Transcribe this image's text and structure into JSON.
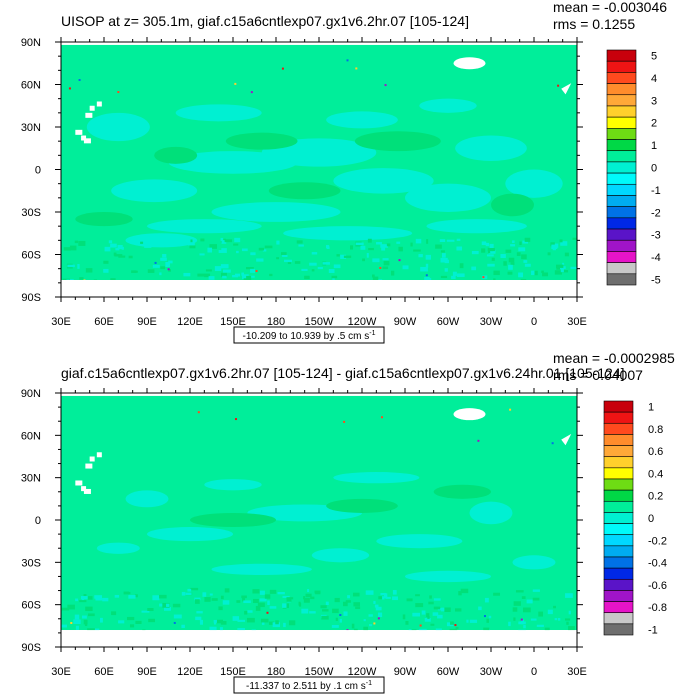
{
  "colors": {
    "ocean_small": "#00ee9a",
    "ocean_pos": "#00e07a",
    "ocean_neg": "#00f0d2",
    "land_mask": "#ffffff"
  },
  "chart_data": [
    {
      "type": "heatmap",
      "title": "UISOP at z= 305.1m, giaf.c15a6cntlexp07.gx1v6.2hr.07 [105-124]",
      "stats": {
        "mean_label": "mean = -0.003046",
        "rms_label": "rms = 0.1255"
      },
      "x_ticks": [
        "30E",
        "60E",
        "90E",
        "120E",
        "150E",
        "180",
        "150W",
        "120W",
        "90W",
        "60W",
        "30W",
        "0",
        "30E"
      ],
      "y_ticks": [
        "90N",
        "60N",
        "30N",
        "0",
        "30S",
        "60S",
        "90S"
      ],
      "xlim": [
        30,
        390
      ],
      "ylim": [
        -90,
        90
      ],
      "range_note": "-10.209 to 10.939 by .5 cm s",
      "range_unit_exp": "-1",
      "colorbar": {
        "labels": [
          "5",
          "4",
          "3",
          "2",
          "1",
          "0",
          "-1",
          "-2",
          "-3",
          "-4",
          "-5"
        ],
        "colors": [
          "#c8000c",
          "#ee1414",
          "#ff4a1e",
          "#ff8c2c",
          "#ffa838",
          "#ffd02c",
          "#ffff00",
          "#6edc14",
          "#00d846",
          "#00ee9a",
          "#00f0d2",
          "#00fafa",
          "#00d8ff",
          "#00acf0",
          "#0072e6",
          "#0028e6",
          "#5a14c8",
          "#a014c8",
          "#e614c8",
          "#c8c8c8",
          "#6e6e6e"
        ]
      }
    },
    {
      "type": "heatmap",
      "title": "giaf.c15a6cntlexp07.gx1v6.2hr.07 [105-124] - giaf.c15a6cntlexp07.gx1v6.24hr.01 [105-124]",
      "stats": {
        "mean_label": "mean = -0.0002985",
        "rms_label": "rms = 0.04007"
      },
      "x_ticks": [
        "30E",
        "60E",
        "90E",
        "120E",
        "150E",
        "180",
        "150W",
        "120W",
        "90W",
        "60W",
        "30W",
        "0",
        "30E"
      ],
      "y_ticks": [
        "90N",
        "60N",
        "30N",
        "0",
        "30S",
        "60S",
        "90S"
      ],
      "xlim": [
        30,
        390
      ],
      "ylim": [
        -90,
        90
      ],
      "range_note": "-11.337 to 2.511 by .1 cm s",
      "range_unit_exp": "-1",
      "colorbar": {
        "labels": [
          "1",
          "0.8",
          "0.6",
          "0.4",
          "0.2",
          "0",
          "-0.2",
          "-0.4",
          "-0.6",
          "-0.8",
          "-1"
        ],
        "colors": [
          "#c8000c",
          "#ee1414",
          "#ff4a1e",
          "#ff8c2c",
          "#ffa838",
          "#ffd02c",
          "#ffff00",
          "#6edc14",
          "#00d846",
          "#00ee9a",
          "#00f0d2",
          "#00fafa",
          "#00d8ff",
          "#00acf0",
          "#0072e6",
          "#0028e6",
          "#5a14c8",
          "#a014c8",
          "#e614c8",
          "#c8c8c8",
          "#6e6e6e"
        ]
      }
    }
  ]
}
